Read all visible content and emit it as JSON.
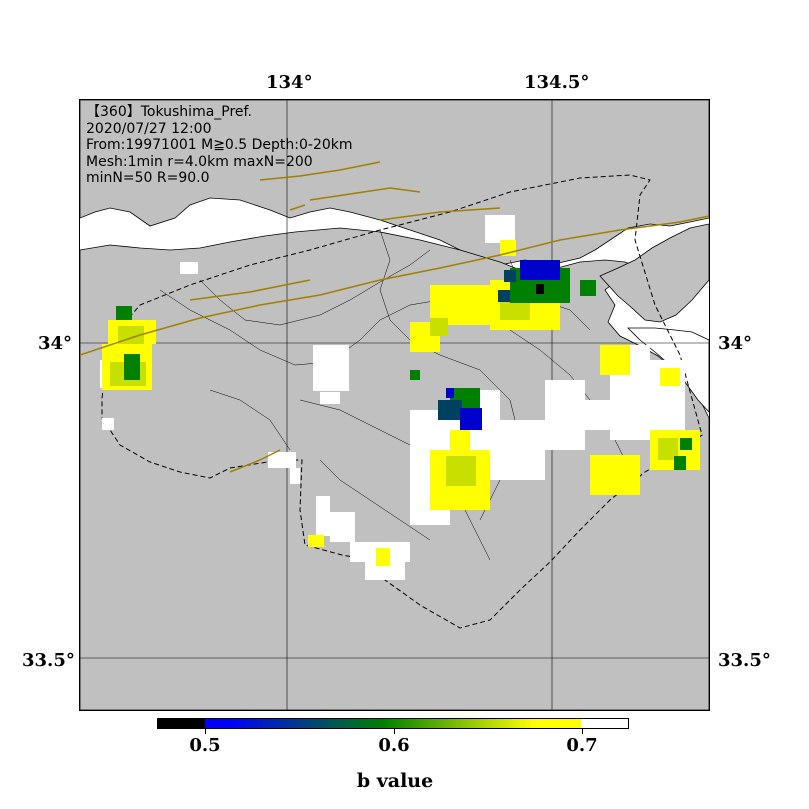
{
  "map": {
    "info_lines": [
      "【360】Tokushima_Pref.",
      "2020/07/27 12:00",
      "From:19971001 M≧0.5 Depth:0-20km",
      "Mesh:1min r=4.0km maxN=200",
      "minN=50 R=90.0"
    ],
    "lon_ticks": [
      "134°",
      "134.5°"
    ],
    "lat_ticks": [
      "34°",
      "33.5°"
    ],
    "colors": {
      "land": "#c0c0c0",
      "no_data_cell": "#ffffff",
      "fault_line": "#a08000",
      "outline": "#000000"
    }
  },
  "colorbar": {
    "ticks": [
      "0.5",
      "0.6",
      "0.7"
    ],
    "title": "b value",
    "stops": [
      "#000000",
      "#0000ff",
      "#008000",
      "#ffff00",
      "#ffffff"
    ]
  }
}
